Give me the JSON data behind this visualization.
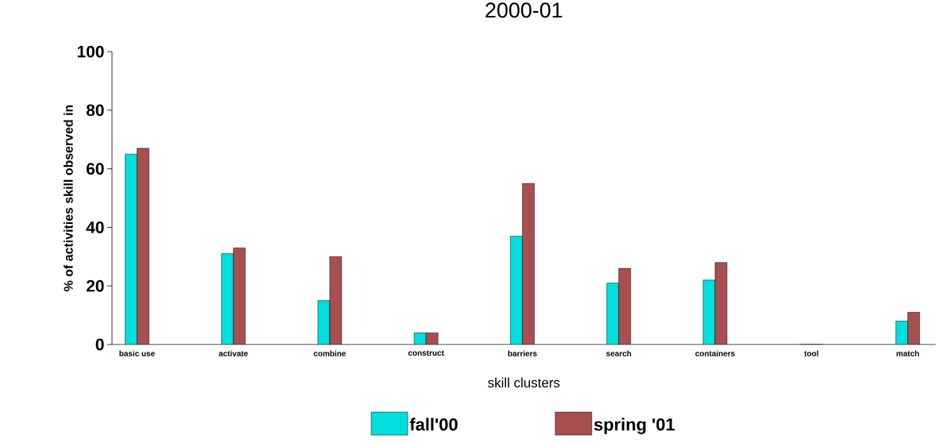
{
  "chart_data": {
    "type": "bar",
    "title": "2000-01",
    "xlabel": "skill clusters",
    "ylabel": "% of activities skill observed in",
    "categories": [
      "basic use",
      "activate",
      "combine",
      "construct",
      "barriers",
      "search",
      "containers",
      "tool",
      "match"
    ],
    "series": [
      {
        "name": "fall'00",
        "color": "#00dede",
        "values": [
          65,
          31,
          15,
          4,
          37,
          21,
          22,
          0,
          8
        ]
      },
      {
        "name": "spring '01",
        "color": "#a85050",
        "values": [
          67,
          33,
          30,
          4,
          55,
          26,
          28,
          0,
          11
        ]
      }
    ],
    "ylim": [
      0,
      100
    ],
    "yticks": [
      0,
      20,
      40,
      60,
      80,
      100
    ],
    "legend": "bottom"
  }
}
